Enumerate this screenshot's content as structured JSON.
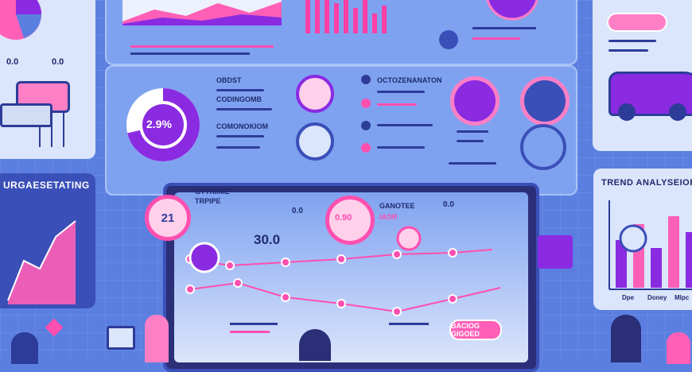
{
  "top_left": {
    "values": [
      "0.0",
      "0.0"
    ]
  },
  "left_panel": {
    "title": "URGAESETATING"
  },
  "donut": {
    "value": "2.9%"
  },
  "donut_labels": [
    "OBDST",
    "CODINGOMB",
    "COMONOKIOM"
  ],
  "mid_labels": [
    "OCTOZENANATON"
  ],
  "right_panel": {
    "title": "TREND ANALYSEIOR",
    "x_labels": [
      "Dpe",
      "Doney",
      "Mlpc"
    ]
  },
  "center": {
    "header_left": "GYTRIIME",
    "header_left2": "TRPIPE",
    "header_right": "GANOTEE",
    "header_right2": "IAOR",
    "badge": "21",
    "value": "30.0",
    "pill": "0.0",
    "pill2": "0.0",
    "dial": "0.90",
    "button": "BACIOG GIGOED"
  },
  "colors": {
    "accent": "#ff4fb0",
    "purple": "#8a2be2",
    "bg": "#5b7fe0"
  }
}
